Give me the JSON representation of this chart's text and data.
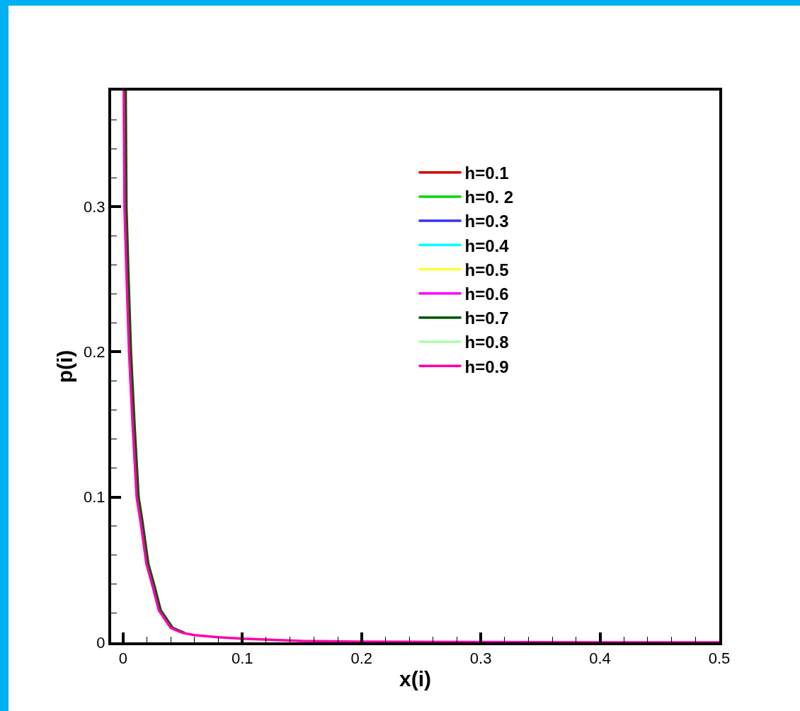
{
  "chart_data": {
    "type": "line",
    "xlabel": "x(i)",
    "ylabel": "p(i)",
    "x": [
      0.0006,
      0.0012,
      0.003,
      0.005,
      0.008,
      0.0114,
      0.0145,
      0.0196,
      0.025,
      0.03,
      0.04,
      0.05,
      0.06,
      0.08,
      0.1,
      0.15,
      0.2,
      0.3,
      0.4,
      0.5
    ],
    "series": [
      {
        "name": "h=0.1",
        "color": "#d40000",
        "values": [
          null,
          null,
          null,
          null,
          null,
          null,
          null,
          null,
          null,
          null,
          null,
          null,
          null,
          null,
          null,
          null,
          null,
          null,
          null,
          null
        ]
      },
      {
        "name": "h=0. 2",
        "color": "#00d400",
        "values": [
          null,
          null,
          null,
          null,
          null,
          null,
          null,
          null,
          null,
          null,
          null,
          null,
          null,
          null,
          null,
          null,
          null,
          null,
          null,
          null
        ]
      },
      {
        "name": "h=0.3",
        "color": "#3333ff",
        "values": [
          null,
          null,
          null,
          null,
          null,
          null,
          null,
          null,
          null,
          null,
          null,
          null,
          null,
          null,
          null,
          null,
          null,
          null,
          null,
          null
        ]
      },
      {
        "name": "h=0.4",
        "color": "#00ffff",
        "values": [
          null,
          null,
          null,
          null,
          null,
          null,
          null,
          null,
          null,
          null,
          null,
          null,
          null,
          null,
          null,
          null,
          null,
          null,
          null,
          null
        ]
      },
      {
        "name": "h=0.5",
        "color": "#ffff33",
        "values": [
          null,
          null,
          null,
          null,
          null,
          null,
          null,
          null,
          null,
          null,
          null,
          null,
          null,
          null,
          null,
          null,
          null,
          null,
          null,
          null
        ]
      },
      {
        "name": "h=0.6",
        "color": "#ff00ff",
        "values": [
          null,
          null,
          null,
          null,
          null,
          null,
          null,
          null,
          null,
          null,
          null,
          null,
          null,
          null,
          null,
          null,
          null,
          null,
          null,
          null
        ]
      },
      {
        "name": "h=0.7",
        "color": "#005500",
        "x": [
          0.0022,
          0.0028,
          0.0046,
          0.0066,
          0.0096,
          0.013,
          0.0161,
          0.0212,
          0.0266,
          0.0316,
          0.0416,
          0.0516
        ],
        "values": [
          0.38,
          0.3,
          0.25,
          0.2,
          0.15,
          0.1,
          0.084,
          0.054,
          0.038,
          0.022,
          0.01,
          0.0065
        ]
      },
      {
        "name": "h=0.8",
        "color": "#aaffaa",
        "values": [
          null,
          null,
          null,
          null,
          null,
          null,
          null,
          null,
          null,
          null,
          null,
          null,
          null,
          null,
          null,
          null,
          null,
          null,
          null,
          null
        ]
      },
      {
        "name": "h=0.9",
        "color": "#ff00aa",
        "values": [
          0.38,
          0.3,
          0.25,
          0.2,
          0.15,
          0.1,
          0.084,
          0.054,
          0.038,
          0.022,
          0.01,
          0.0065,
          0.005,
          0.0035,
          0.0025,
          0.001,
          0.0005,
          0.0002,
          0,
          0
        ]
      }
    ],
    "xlim": [
      -0.01,
      0.5
    ],
    "ylim": [
      0,
      0.38
    ],
    "xticks": [
      0,
      {
        "value": 0.02,
        "label": null
      },
      {
        "value": 0.04,
        "label": null
      },
      {
        "value": 0.06,
        "label": null
      },
      {
        "value": 0.08,
        "label": null
      },
      0.1,
      {
        "value": 0.12,
        "label": null
      },
      {
        "value": 0.14,
        "label": null
      },
      {
        "value": 0.16,
        "label": null
      },
      {
        "value": 0.18,
        "label": null
      },
      0.2,
      {
        "value": 0.22,
        "label": null
      },
      {
        "value": 0.24,
        "label": null
      },
      {
        "value": 0.26,
        "label": null
      },
      {
        "value": 0.28,
        "label": null
      },
      0.3,
      {
        "value": 0.32,
        "label": null
      },
      {
        "value": 0.34,
        "label": null
      },
      {
        "value": 0.36,
        "label": null
      },
      {
        "value": 0.38,
        "label": null
      },
      0.4,
      {
        "value": 0.42,
        "label": null
      },
      {
        "value": 0.44,
        "label": null
      },
      {
        "value": 0.46,
        "label": null
      },
      {
        "value": 0.48,
        "label": null
      },
      0.5
    ],
    "yticks": [
      0,
      {
        "value": 0.02,
        "label": null
      },
      {
        "value": 0.04,
        "label": null
      },
      {
        "value": 0.06,
        "label": null
      },
      {
        "value": 0.08,
        "label": null
      },
      0.1,
      {
        "value": 0.12,
        "label": null
      },
      {
        "value": 0.14,
        "label": null
      },
      {
        "value": 0.16,
        "label": null
      },
      {
        "value": 0.18,
        "label": null
      },
      0.2,
      {
        "value": 0.22,
        "label": null
      },
      {
        "value": 0.24,
        "label": null
      },
      {
        "value": 0.26,
        "label": null
      },
      {
        "value": 0.28,
        "label": null
      },
      0.3,
      {
        "value": 0.32,
        "label": null
      },
      {
        "value": 0.34,
        "label": null
      },
      {
        "value": 0.36,
        "label": null
      }
    ],
    "legend": "top right",
    "grid": false,
    "marker": "none",
    "line_style": "solid"
  }
}
